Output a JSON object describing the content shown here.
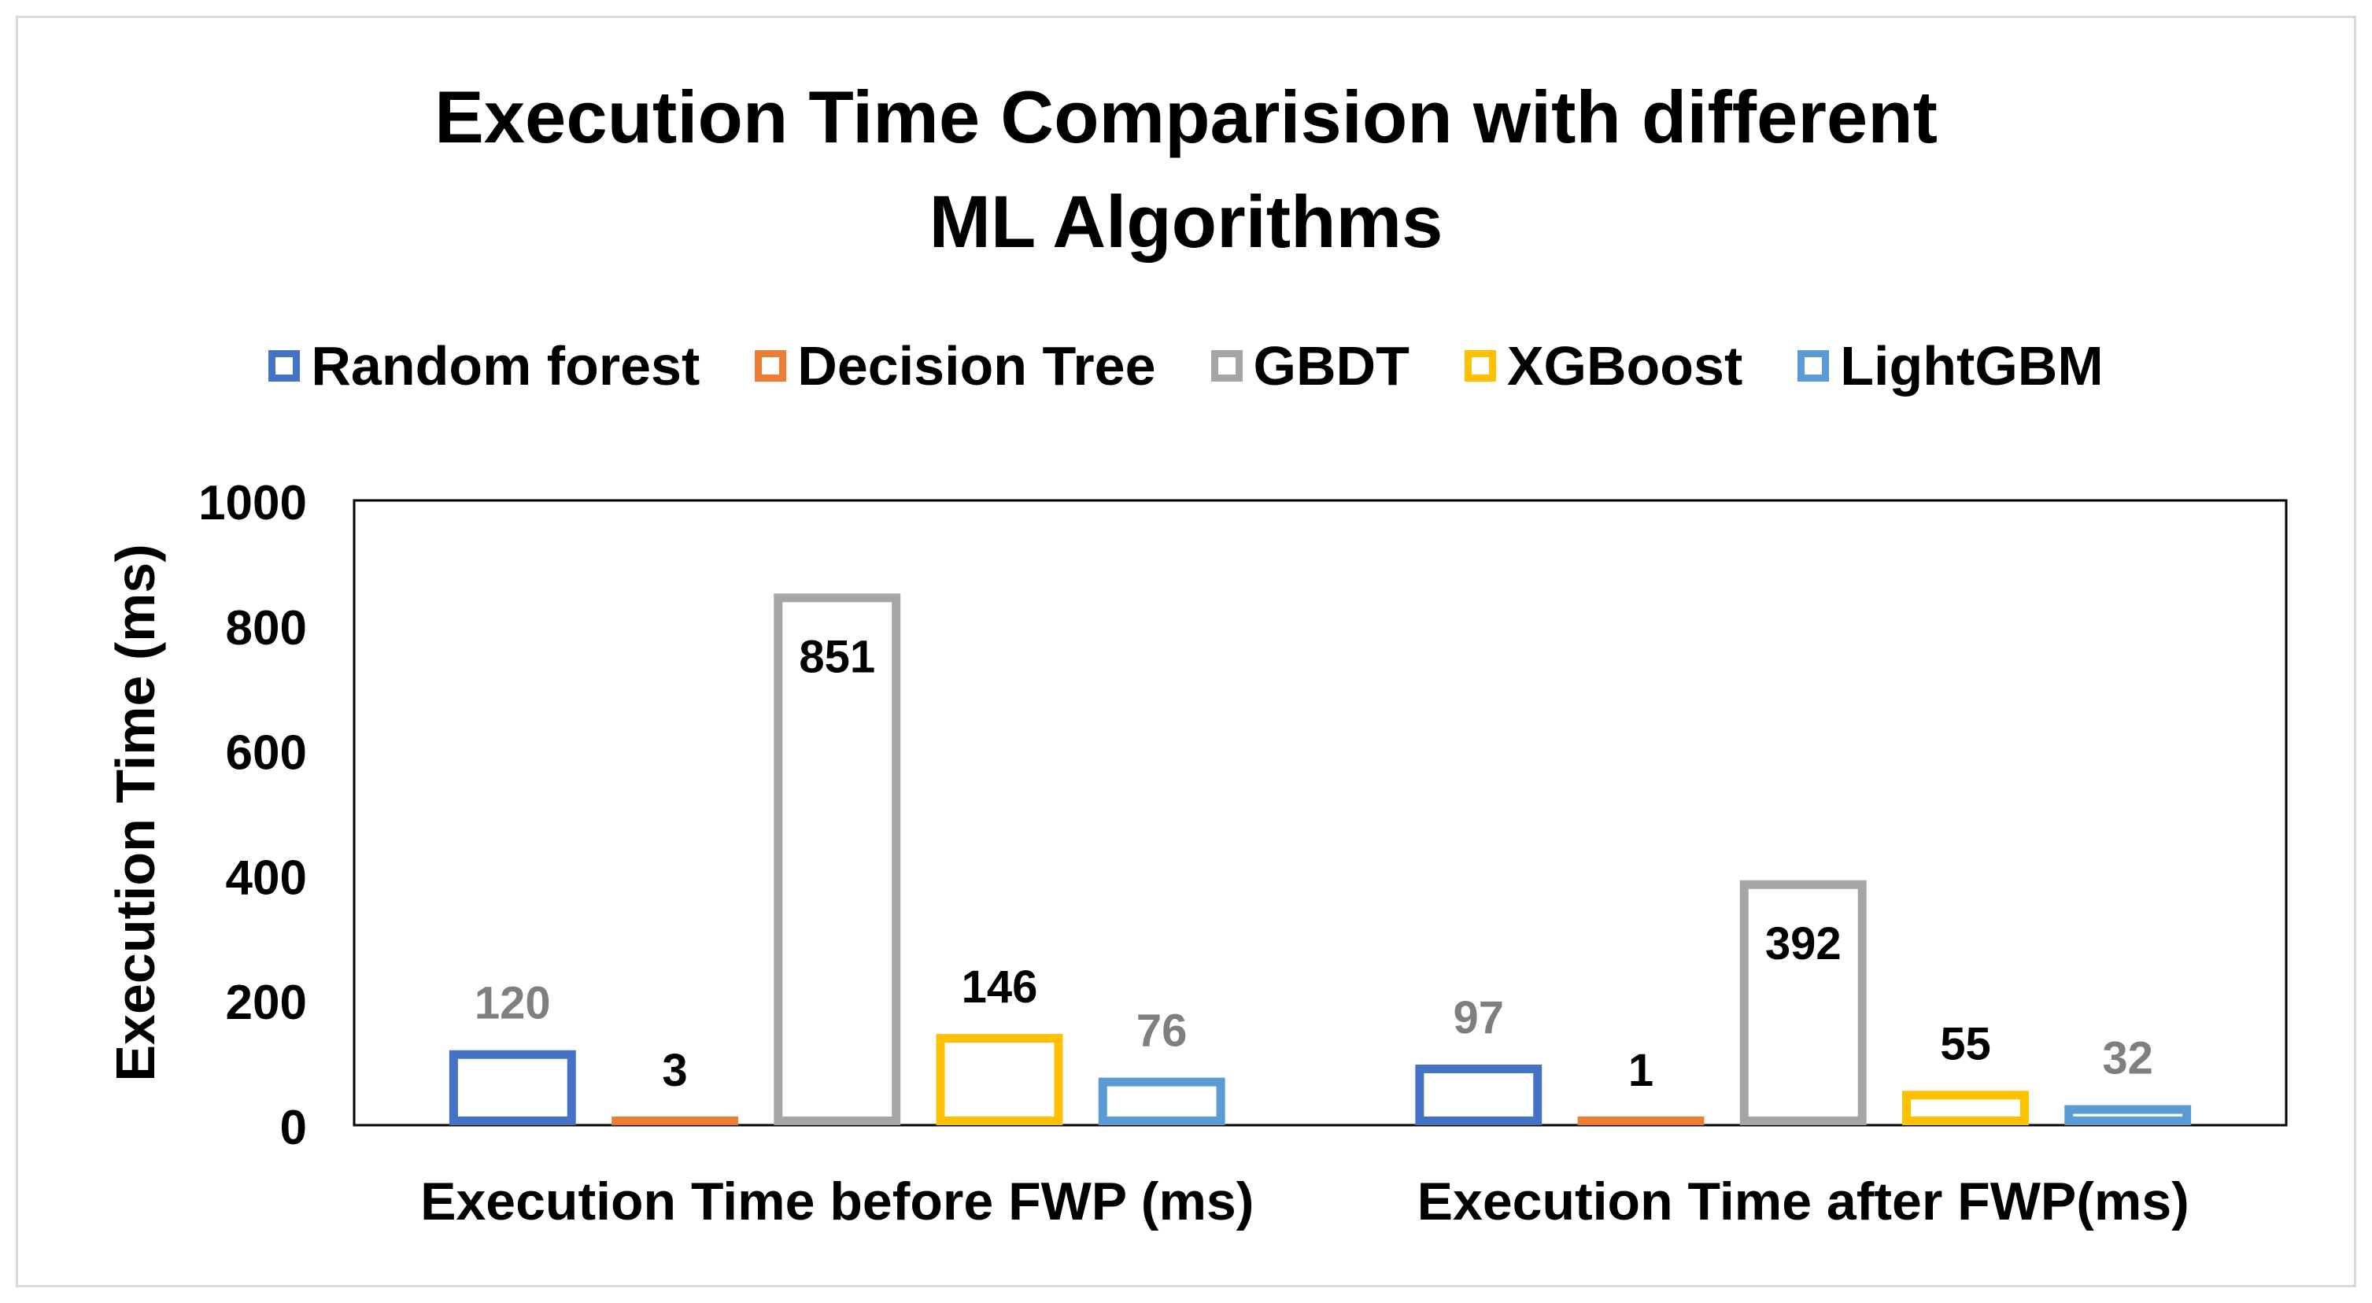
{
  "chart_data": {
    "type": "bar",
    "title_lines": [
      "Execution Time Comparision with different",
      "ML Algorithms"
    ],
    "categories": [
      "Execution Time before FWP (ms)",
      "Execution Time after FWP(ms)"
    ],
    "series": [
      {
        "name": "Random forest",
        "color": "#4472c4",
        "values": [
          120,
          97
        ],
        "label_color": "#7f7f7f"
      },
      {
        "name": "Decision Tree",
        "color": "#ed7d31",
        "values": [
          3,
          1
        ],
        "label_color": "#000000"
      },
      {
        "name": "GBDT",
        "color": "#a5a5a5",
        "values": [
          851,
          392
        ],
        "label_color": "#000000"
      },
      {
        "name": "XGBoost",
        "color": "#ffc000",
        "values": [
          146,
          55
        ],
        "label_color": "#000000"
      },
      {
        "name": "LightGBM",
        "color": "#5b9bd5",
        "values": [
          76,
          32
        ],
        "label_color": "#7f7f7f"
      }
    ],
    "ylabel": "Execution Time (ms)",
    "xlabel": "",
    "ylim": [
      0,
      1000
    ],
    "yticks": [
      0,
      200,
      400,
      600,
      800,
      1000
    ],
    "grid": false,
    "legend_position": "top"
  }
}
